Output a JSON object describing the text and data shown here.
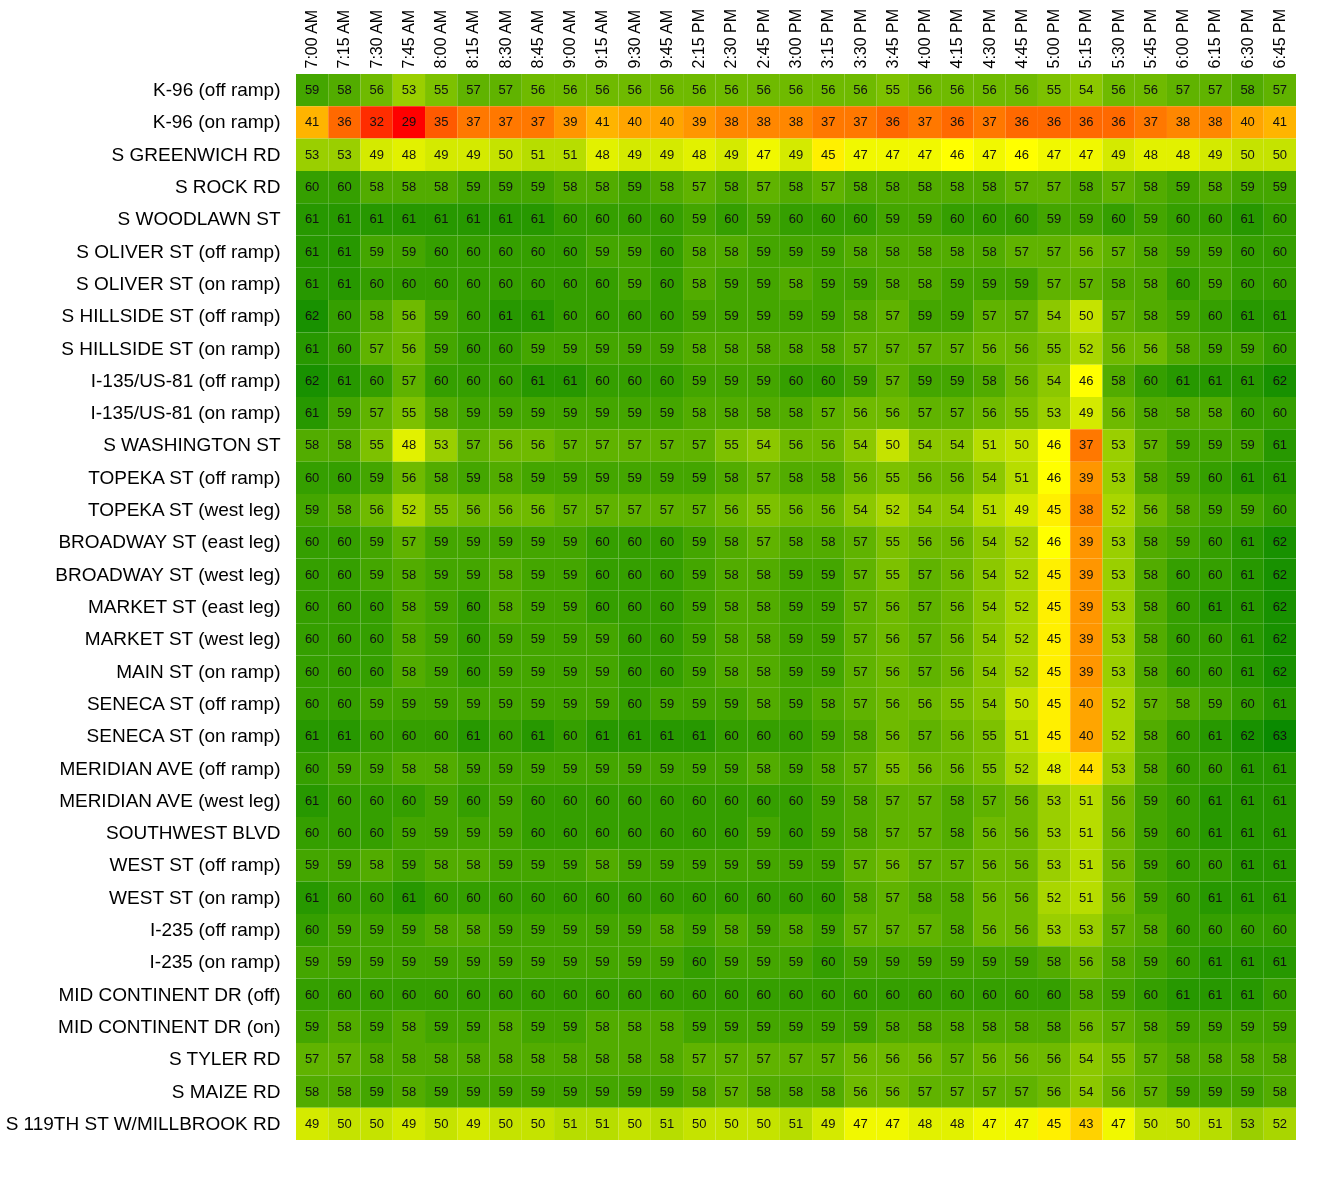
{
  "chart_data": {
    "type": "heatmap",
    "data_labels": true,
    "categories": [
      "7:00 AM",
      "7:15 AM",
      "7:30 AM",
      "7:45 AM",
      "8:00 AM",
      "8:15 AM",
      "8:30 AM",
      "8:45 AM",
      "9:00 AM",
      "9:15 AM",
      "9:30 AM",
      "9:45 AM",
      "2:15 PM",
      "2:30 PM",
      "2:45 PM",
      "3:00 PM",
      "3:15 PM",
      "3:30 PM",
      "3:45 PM",
      "4:00 PM",
      "4:15 PM",
      "4:30 PM",
      "4:45 PM",
      "5:00 PM",
      "5:15 PM",
      "5:30 PM",
      "5:45 PM",
      "6:00 PM",
      "6:15 PM",
      "6:30 PM",
      "6:45 PM"
    ],
    "y_categories": [
      "K-96 (off ramp)",
      "K-96 (on ramp)",
      "S GREENWICH RD",
      "S ROCK RD",
      "S WOODLAWN ST",
      "S OLIVER ST (off ramp)",
      "S OLIVER ST (on ramp)",
      "S HILLSIDE ST (off ramp)",
      "S HILLSIDE ST (on ramp)",
      "I-135/US-81 (off ramp)",
      "I-135/US-81 (on ramp)",
      "S WASHINGTON ST",
      "TOPEKA ST (off ramp)",
      "TOPEKA ST (west leg)",
      "BROADWAY ST (east leg)",
      "BROADWAY ST (west leg)",
      "MARKET ST (east leg)",
      "MARKET ST (west leg)",
      "MAIN ST (on ramp)",
      "SENECA ST (off ramp)",
      "SENECA ST (on ramp)",
      "MERIDIAN AVE (off ramp)",
      "MERIDIAN AVE (west leg)",
      "SOUTHWEST BLVD",
      "WEST ST (off ramp)",
      "WEST ST (on ramp)",
      "I-235 (off ramp)",
      "I-235 (on ramp)",
      "MID CONTINENT DR (off)",
      "MID CONTINENT DR (on)",
      "S TYLER RD",
      "S MAIZE RD",
      "S 119TH ST W/MILLBROOK RD"
    ],
    "cells": [
      [
        59,
        58,
        56,
        53,
        55,
        57,
        57,
        56,
        56,
        56,
        56,
        56,
        56,
        56,
        56,
        56,
        56,
        56,
        55,
        56,
        56,
        56,
        56,
        55,
        54,
        56,
        56,
        57,
        57,
        58,
        57
      ],
      [
        41,
        36,
        32,
        29,
        35,
        37,
        37,
        37,
        39,
        41,
        40,
        40,
        39,
        38,
        38,
        38,
        37,
        37,
        36,
        37,
        36,
        37,
        36,
        36,
        36,
        36,
        37,
        38,
        38,
        40,
        41
      ],
      [
        53,
        53,
        49,
        48,
        49,
        49,
        50,
        51,
        51,
        48,
        49,
        49,
        48,
        49,
        47,
        49,
        45,
        47,
        47,
        47,
        46,
        47,
        46,
        47,
        47,
        49,
        48,
        48,
        49,
        50,
        50
      ],
      [
        60,
        60,
        58,
        58,
        58,
        59,
        59,
        59,
        58,
        58,
        59,
        58,
        57,
        58,
        57,
        58,
        57,
        58,
        58,
        58,
        58,
        58,
        57,
        57,
        58,
        57,
        58,
        59,
        58,
        59,
        59
      ],
      [
        61,
        61,
        61,
        61,
        61,
        61,
        61,
        61,
        60,
        60,
        60,
        60,
        59,
        60,
        59,
        60,
        60,
        60,
        59,
        59,
        60,
        60,
        60,
        59,
        59,
        60,
        59,
        60,
        60,
        61,
        60
      ],
      [
        61,
        61,
        59,
        59,
        60,
        60,
        60,
        60,
        60,
        59,
        59,
        60,
        58,
        58,
        59,
        59,
        59,
        58,
        58,
        58,
        58,
        58,
        57,
        57,
        56,
        57,
        58,
        59,
        59,
        60,
        60
      ],
      [
        61,
        61,
        60,
        60,
        60,
        60,
        60,
        60,
        60,
        60,
        59,
        60,
        58,
        59,
        59,
        58,
        59,
        59,
        58,
        58,
        59,
        59,
        59,
        57,
        57,
        58,
        58,
        60,
        59,
        60,
        60
      ],
      [
        62,
        60,
        58,
        56,
        59,
        60,
        61,
        61,
        60,
        60,
        60,
        60,
        59,
        59,
        59,
        59,
        59,
        58,
        57,
        59,
        59,
        57,
        57,
        54,
        50,
        57,
        58,
        59,
        60,
        61,
        61
      ],
      [
        61,
        60,
        57,
        56,
        59,
        60,
        60,
        59,
        59,
        59,
        59,
        59,
        58,
        58,
        58,
        58,
        58,
        57,
        57,
        57,
        57,
        56,
        56,
        55,
        52,
        56,
        56,
        58,
        59,
        59,
        60
      ],
      [
        62,
        61,
        60,
        57,
        60,
        60,
        60,
        61,
        61,
        60,
        60,
        60,
        59,
        59,
        59,
        60,
        60,
        59,
        57,
        59,
        59,
        58,
        56,
        54,
        46,
        58,
        60,
        61,
        61,
        61,
        62
      ],
      [
        61,
        59,
        57,
        55,
        58,
        59,
        59,
        59,
        59,
        59,
        59,
        59,
        58,
        58,
        58,
        58,
        57,
        56,
        56,
        57,
        57,
        56,
        55,
        53,
        49,
        56,
        58,
        58,
        58,
        60,
        60
      ],
      [
        58,
        58,
        55,
        48,
        53,
        57,
        56,
        56,
        57,
        57,
        57,
        57,
        57,
        55,
        54,
        56,
        56,
        54,
        50,
        54,
        54,
        51,
        50,
        46,
        37,
        53,
        57,
        59,
        59,
        59,
        61
      ],
      [
        60,
        60,
        59,
        56,
        58,
        59,
        58,
        59,
        59,
        59,
        59,
        59,
        59,
        58,
        57,
        58,
        58,
        56,
        55,
        56,
        56,
        54,
        51,
        46,
        39,
        53,
        58,
        59,
        60,
        61,
        61
      ],
      [
        59,
        58,
        56,
        52,
        55,
        56,
        56,
        56,
        57,
        57,
        57,
        57,
        57,
        56,
        55,
        56,
        56,
        54,
        52,
        54,
        54,
        51,
        49,
        45,
        38,
        52,
        56,
        58,
        59,
        59,
        60
      ],
      [
        60,
        60,
        59,
        57,
        59,
        59,
        59,
        59,
        59,
        60,
        60,
        60,
        59,
        58,
        57,
        58,
        58,
        57,
        55,
        56,
        56,
        54,
        52,
        46,
        39,
        53,
        58,
        59,
        60,
        61,
        62
      ],
      [
        60,
        60,
        59,
        58,
        59,
        59,
        58,
        59,
        59,
        60,
        60,
        60,
        59,
        58,
        58,
        59,
        59,
        57,
        55,
        57,
        56,
        54,
        52,
        45,
        39,
        53,
        58,
        60,
        60,
        61,
        62
      ],
      [
        60,
        60,
        60,
        58,
        59,
        60,
        58,
        59,
        59,
        60,
        60,
        60,
        59,
        58,
        58,
        59,
        59,
        57,
        56,
        57,
        56,
        54,
        52,
        45,
        39,
        53,
        58,
        60,
        61,
        61,
        62
      ],
      [
        60,
        60,
        60,
        58,
        59,
        60,
        59,
        59,
        59,
        59,
        60,
        60,
        59,
        58,
        58,
        59,
        59,
        57,
        56,
        57,
        56,
        54,
        52,
        45,
        39,
        53,
        58,
        60,
        60,
        61,
        62
      ],
      [
        60,
        60,
        60,
        58,
        59,
        60,
        59,
        59,
        59,
        59,
        60,
        60,
        59,
        58,
        58,
        59,
        59,
        57,
        56,
        57,
        56,
        54,
        52,
        45,
        39,
        53,
        58,
        60,
        60,
        61,
        62
      ],
      [
        60,
        60,
        59,
        59,
        59,
        59,
        59,
        59,
        59,
        59,
        60,
        59,
        59,
        59,
        58,
        59,
        58,
        57,
        56,
        56,
        55,
        54,
        50,
        45,
        40,
        52,
        57,
        58,
        59,
        60,
        61
      ],
      [
        61,
        61,
        60,
        60,
        60,
        61,
        60,
        61,
        60,
        61,
        61,
        61,
        61,
        60,
        60,
        60,
        59,
        58,
        56,
        57,
        56,
        55,
        51,
        45,
        40,
        52,
        58,
        60,
        61,
        62,
        63
      ],
      [
        60,
        59,
        59,
        58,
        58,
        59,
        59,
        59,
        59,
        59,
        59,
        59,
        59,
        59,
        58,
        59,
        58,
        57,
        55,
        56,
        56,
        55,
        52,
        48,
        44,
        53,
        58,
        60,
        60,
        61,
        61
      ],
      [
        61,
        60,
        60,
        60,
        59,
        60,
        59,
        60,
        60,
        60,
        60,
        60,
        60,
        60,
        60,
        60,
        59,
        58,
        57,
        57,
        58,
        57,
        56,
        53,
        51,
        56,
        59,
        60,
        61,
        61,
        61
      ],
      [
        60,
        60,
        60,
        59,
        59,
        59,
        59,
        60,
        60,
        60,
        60,
        60,
        60,
        60,
        59,
        60,
        59,
        58,
        57,
        57,
        58,
        56,
        56,
        53,
        51,
        56,
        59,
        60,
        61,
        61,
        61
      ],
      [
        59,
        59,
        58,
        59,
        58,
        58,
        59,
        59,
        59,
        58,
        59,
        59,
        59,
        59,
        59,
        59,
        59,
        57,
        56,
        57,
        57,
        56,
        56,
        53,
        51,
        56,
        59,
        60,
        60,
        61,
        61
      ],
      [
        61,
        60,
        60,
        61,
        60,
        60,
        60,
        60,
        60,
        60,
        60,
        60,
        60,
        60,
        60,
        60,
        60,
        58,
        57,
        58,
        58,
        56,
        56,
        52,
        51,
        56,
        59,
        60,
        61,
        61,
        61
      ],
      [
        60,
        59,
        59,
        59,
        58,
        58,
        59,
        59,
        59,
        59,
        59,
        58,
        59,
        58,
        59,
        58,
        59,
        57,
        57,
        57,
        58,
        56,
        56,
        53,
        53,
        57,
        58,
        60,
        60,
        60,
        60
      ],
      [
        59,
        59,
        59,
        59,
        59,
        59,
        59,
        59,
        59,
        59,
        59,
        59,
        60,
        59,
        59,
        59,
        60,
        59,
        59,
        59,
        59,
        59,
        59,
        58,
        56,
        58,
        59,
        60,
        61,
        61,
        61
      ],
      [
        60,
        60,
        60,
        60,
        60,
        60,
        60,
        60,
        60,
        60,
        60,
        60,
        60,
        60,
        60,
        60,
        60,
        60,
        60,
        60,
        60,
        60,
        60,
        60,
        58,
        59,
        60,
        61,
        61,
        61,
        60
      ],
      [
        59,
        58,
        59,
        58,
        59,
        59,
        58,
        59,
        59,
        58,
        58,
        58,
        59,
        59,
        59,
        59,
        59,
        59,
        58,
        58,
        58,
        58,
        58,
        58,
        56,
        57,
        58,
        59,
        59,
        59,
        59
      ],
      [
        57,
        57,
        58,
        58,
        58,
        58,
        58,
        58,
        58,
        58,
        58,
        58,
        57,
        57,
        57,
        57,
        57,
        56,
        56,
        56,
        57,
        56,
        56,
        56,
        54,
        55,
        57,
        58,
        58,
        58,
        58
      ],
      [
        58,
        58,
        59,
        58,
        59,
        59,
        59,
        59,
        59,
        59,
        59,
        59,
        58,
        57,
        58,
        58,
        58,
        56,
        56,
        57,
        57,
        57,
        57,
        56,
        54,
        56,
        57,
        59,
        59,
        59,
        58
      ],
      [
        49,
        50,
        50,
        49,
        50,
        49,
        50,
        50,
        51,
        51,
        50,
        51,
        50,
        50,
        50,
        51,
        49,
        47,
        47,
        48,
        48,
        47,
        47,
        45,
        43,
        47,
        50,
        50,
        51,
        53,
        52
      ]
    ]
  }
}
